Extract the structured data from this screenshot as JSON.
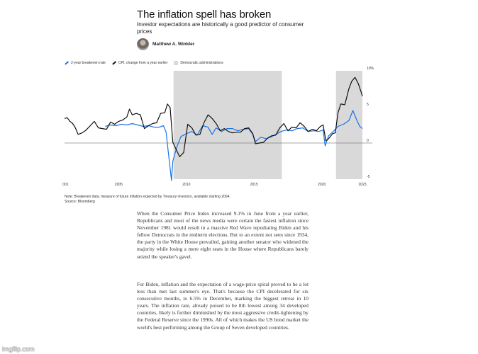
{
  "header": {
    "title": "The inflation spell has broken",
    "subtitle": "Investor expectations are historically a good predictor of consumer prices",
    "author": "Matthew A. Winkler"
  },
  "legend": {
    "items": [
      {
        "label": "2-year breakeven rate",
        "color": "#1a73e8"
      },
      {
        "label": "CPI, change from a year earlier",
        "color": "#111111"
      },
      {
        "label": "Democratic administrations",
        "color": "#d9d9d9"
      }
    ]
  },
  "chart_data": {
    "type": "line",
    "x_range": [
      2001,
      2023
    ],
    "ylim": [
      -5,
      10
    ],
    "yticks": [
      -5,
      0,
      5,
      10
    ],
    "ytick_labels": [
      "-5",
      "0",
      "5",
      "10%"
    ],
    "xticks": [
      2001,
      2005,
      2010,
      2015,
      2020,
      2023
    ],
    "xtick_labels": [
      "2001",
      "2005",
      "2010",
      "2015",
      "2020",
      "2023"
    ],
    "shaded_periods": [
      [
        2009.05,
        2017.05
      ],
      [
        2021.05,
        2023.0
      ]
    ],
    "series": [
      {
        "name": "CPI, change from a year earlier",
        "color": "#111111",
        "x": [
          2001.0,
          2001.2,
          2001.4,
          2001.6,
          2001.8,
          2002.0,
          2002.3,
          2002.6,
          2002.9,
          2003.2,
          2003.5,
          2003.8,
          2004.1,
          2004.4,
          2004.7,
          2005.0,
          2005.3,
          2005.6,
          2005.8,
          2006.0,
          2006.3,
          2006.6,
          2006.9,
          2007.2,
          2007.5,
          2007.8,
          2008.1,
          2008.4,
          2008.6,
          2008.8,
          2009.0,
          2009.2,
          2009.5,
          2009.8,
          2010.1,
          2010.4,
          2010.7,
          2011.0,
          2011.3,
          2011.6,
          2011.9,
          2012.2,
          2012.5,
          2012.8,
          2013.1,
          2013.4,
          2013.7,
          2014.0,
          2014.3,
          2014.6,
          2014.9,
          2015.1,
          2015.4,
          2015.7,
          2016.0,
          2016.3,
          2016.6,
          2016.9,
          2017.2,
          2017.5,
          2017.8,
          2018.1,
          2018.4,
          2018.7,
          2019.0,
          2019.3,
          2019.6,
          2019.9,
          2020.1,
          2020.3,
          2020.5,
          2020.8,
          2021.0,
          2021.2,
          2021.4,
          2021.7,
          2022.0,
          2022.2,
          2022.45,
          2022.7,
          2022.9,
          2023.0
        ],
        "values": [
          3.4,
          3.5,
          3.0,
          2.7,
          2.1,
          1.2,
          1.4,
          1.8,
          2.4,
          3.0,
          2.1,
          2.0,
          1.9,
          2.9,
          2.6,
          3.0,
          3.2,
          3.6,
          4.7,
          3.9,
          4.1,
          3.9,
          2.0,
          2.4,
          2.7,
          2.8,
          4.1,
          4.2,
          5.4,
          4.9,
          0.1,
          -0.7,
          -1.9,
          -1.3,
          2.6,
          2.1,
          1.1,
          1.2,
          2.8,
          3.9,
          3.4,
          2.7,
          1.7,
          2.0,
          1.6,
          1.4,
          1.5,
          1.5,
          2.0,
          2.1,
          1.3,
          -0.1,
          0.0,
          0.1,
          0.7,
          1.0,
          1.1,
          2.1,
          2.7,
          1.7,
          2.2,
          2.1,
          2.8,
          2.3,
          1.6,
          1.9,
          1.7,
          2.3,
          2.5,
          0.3,
          0.6,
          1.3,
          1.4,
          4.2,
          5.4,
          5.3,
          7.5,
          8.5,
          9.1,
          8.2,
          7.1,
          6.5
        ]
      },
      {
        "name": "2-year breakeven rate",
        "color": "#1a73e8",
        "x": [
          2004.0,
          2004.4,
          2004.8,
          2005.2,
          2005.6,
          2006.0,
          2006.4,
          2006.8,
          2007.2,
          2007.6,
          2008.0,
          2008.3,
          2008.5,
          2008.65,
          2008.8,
          2008.9,
          2009.0,
          2009.3,
          2009.6,
          2010.0,
          2010.4,
          2010.8,
          2011.2,
          2011.6,
          2011.9,
          2012.2,
          2012.6,
          2013.0,
          2013.4,
          2013.8,
          2014.2,
          2014.6,
          2014.9,
          2015.1,
          2015.5,
          2015.9,
          2016.2,
          2016.6,
          2017.0,
          2017.4,
          2017.8,
          2018.2,
          2018.6,
          2019.0,
          2019.4,
          2019.8,
          2020.1,
          2020.25,
          2020.5,
          2020.9,
          2021.2,
          2021.6,
          2022.0,
          2022.3,
          2022.6,
          2022.8,
          2023.0
        ],
        "values": [
          2.3,
          2.5,
          2.4,
          2.6,
          2.5,
          2.7,
          2.5,
          2.3,
          2.4,
          2.2,
          2.2,
          2.4,
          1.5,
          -1.0,
          -3.5,
          -5.2,
          -2.5,
          -0.5,
          0.9,
          1.3,
          1.6,
          1.1,
          2.4,
          2.2,
          1.2,
          2.1,
          1.6,
          2.0,
          2.0,
          1.7,
          1.9,
          2.0,
          1.2,
          0.2,
          0.8,
          0.6,
          0.8,
          1.2,
          1.6,
          1.8,
          1.7,
          2.0,
          2.1,
          1.6,
          1.7,
          1.6,
          1.8,
          -0.4,
          1.0,
          1.7,
          2.3,
          2.6,
          3.1,
          4.5,
          3.1,
          2.3,
          2.0
        ]
      }
    ]
  },
  "notes": {
    "note": "Note: Breakeven data, measure of future inflation expected by Treasury investors, available starting 2004.",
    "source": "Source: Bloomberg"
  },
  "article": {
    "p1": "When the Consumer Price Index increased 9.1% in June from a year earlier, Republicans and most of the news media were certain the fastest inflation since November 1981 would result in a massive Red Wave repudiating Biden and his fellow Democrats in the midterm elections. But to an extent not seen since 1934, the party in the White House prevailed, gaining another senator who widened the majority while losing a mere eight seats in the House where Republicans barely seized the speaker's gavel.",
    "p2": "For Biden, inflation and the expectation of a wage-price spiral proved to be a lot less than met last summer's eye. That's because the CPI decelerated for six consecutive months, to 6.5% in December, marking the biggest retreat in 10 years. The inflation rate, already poised to be 8th lowest among 34 developed countries, likely is further diminished by the most aggressive credit-tightening by the Federal Reserve since the 1990s. All of which makes the US bond market the world's best performing among the Group of Seven developed countries."
  },
  "watermark": "imgflip.com"
}
